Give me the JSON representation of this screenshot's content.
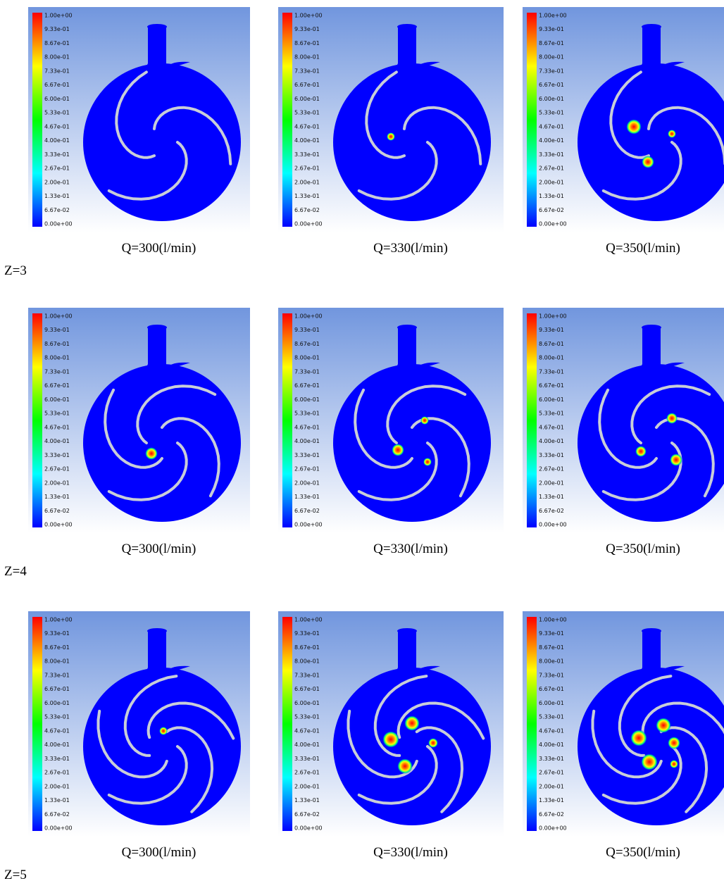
{
  "colorbar": {
    "labels": [
      "1.00e+00",
      "9.33e-01",
      "8.67e-01",
      "8.00e-01",
      "7.33e-01",
      "6.67e-01",
      "6.00e-01",
      "5.33e-01",
      "4.67e-01",
      "4.00e-01",
      "3.33e-01",
      "2.67e-01",
      "2.00e-01",
      "1.33e-01",
      "6.67e-02",
      "0.00e+00"
    ]
  },
  "rows": [
    {
      "label": "Z=3",
      "panels": [
        {
          "caption": "Q=300(l/min)"
        },
        {
          "caption": "Q=330(l/min)"
        },
        {
          "caption": "Q=350(l/min)"
        }
      ]
    },
    {
      "label": "Z=4",
      "panels": [
        {
          "caption": "Q=300(l/min)"
        },
        {
          "caption": "Q=330(l/min)"
        },
        {
          "caption": "Q=350(l/min)"
        }
      ]
    },
    {
      "label": "Z=5",
      "panels": [
        {
          "caption": "Q=300(l/min)"
        },
        {
          "caption": "Q=330(l/min)"
        },
        {
          "caption": "Q=350(l/min)"
        }
      ]
    }
  ]
}
